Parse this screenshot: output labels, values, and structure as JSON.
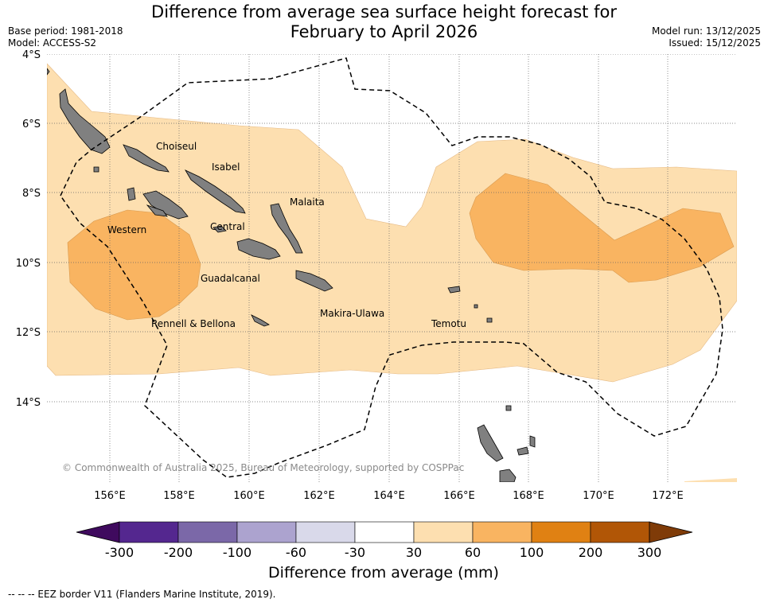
{
  "title": {
    "line1": "Difference from average sea surface height forecast for",
    "line2": "February to April 2026"
  },
  "info_left": {
    "base_period": "Base period: 1981-2018",
    "model": "Model: ACCESS-S2"
  },
  "info_right": {
    "model_run": "Model run: 13/12/2025",
    "issued": "Issued: 15/12/2025"
  },
  "map": {
    "lat_labels": [
      "4°S",
      "6°S",
      "8°S",
      "10°S",
      "12°S",
      "14°S"
    ],
    "lon_labels": [
      "156°E",
      "158°E",
      "160°E",
      "162°E",
      "164°E",
      "166°E",
      "168°E",
      "170°E",
      "172°E"
    ],
    "places": [
      "Choiseul",
      "Isabel",
      "Malaita",
      "Western",
      "Central",
      "Guadalcanal",
      "Makira-Ulawa",
      "Rennell & Bellona",
      "Temotu"
    ],
    "copyright": "© Commonwealth of Australia 2025, Bureau of Meteorology, supported by COSPPac"
  },
  "colorbar": {
    "title": "Difference from average (mm)",
    "ticks": [
      "-300",
      "-200",
      "-100",
      "-60",
      "-30",
      "30",
      "60",
      "100",
      "200",
      "300"
    ],
    "colors": [
      "#3f0a5e",
      "#54278f",
      "#7b68a8",
      "#aca3cf",
      "#d9d9ea",
      "#ffffff",
      "#fddfb0",
      "#f9b461",
      "#e08113",
      "#b15606",
      "#7f3b08"
    ]
  },
  "footnote": "--  --  -- EEZ border V11 (Flanders Marine Institute, 2019)."
}
